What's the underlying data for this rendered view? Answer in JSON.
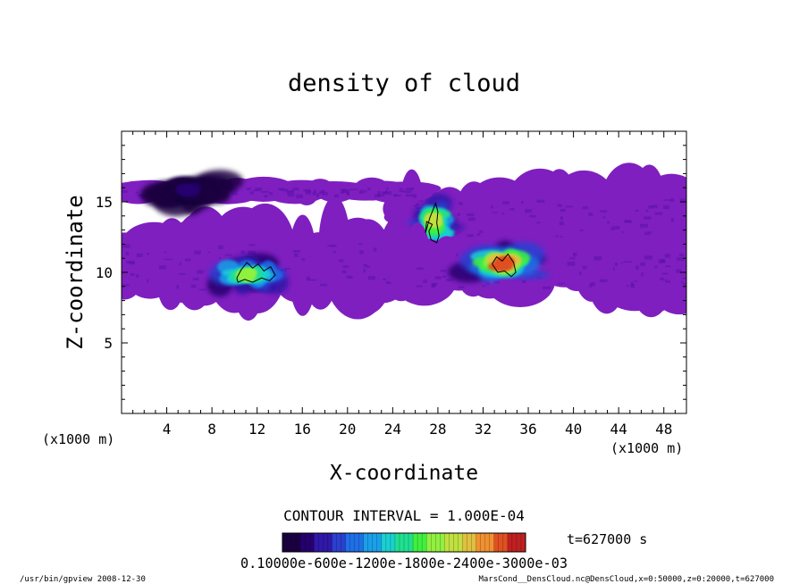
{
  "chart_data": {
    "type": "heatmap",
    "title": "density of cloud",
    "xlabel": "X-coordinate",
    "ylabel": "Z-coordinate",
    "x_unit_left": "(x1000 m)",
    "x_unit_right": "(x1000 m)",
    "xlim": [
      0,
      50
    ],
    "ylim": [
      0,
      20
    ],
    "x_ticks": [
      4,
      8,
      12,
      16,
      20,
      24,
      28,
      32,
      36,
      40,
      44,
      48
    ],
    "y_ticks": [
      5,
      10,
      15
    ],
    "x_minor_step": 1,
    "y_minor_step": 1,
    "contour_interval_label": "CONTOUR INTERVAL = 1.000E-04",
    "time_label": "t=627000 s",
    "colorbar_labels": "0.10000e-600e-1200e-1800e-2400e-3000e-03",
    "colorbar_range": [
      0,
      0.0003
    ],
    "colorbar_colors": [
      "#1a0040",
      "#26006e",
      "#3018a8",
      "#2b3fd0",
      "#1f6fe6",
      "#1aa0e8",
      "#1ad0d0",
      "#20e090",
      "#40f040",
      "#90f040",
      "#c0e040",
      "#e0c040",
      "#f09030",
      "#e05020",
      "#c02020"
    ],
    "cloud_base_color": "#7f1fc0",
    "cloud_edge_color": "#5a10a8",
    "regions": [
      {
        "name": "left cloud band",
        "x_range": [
          0,
          27
        ],
        "z_range": [
          7.7,
          13.2
        ],
        "peak_x": 11,
        "peak_z": 9.9,
        "peak_value": 0.00018
      },
      {
        "name": "upper middle cloud",
        "x_range": [
          25.5,
          50
        ],
        "z_range": [
          11.5,
          16.2
        ],
        "peak_x": 27.7,
        "peak_z": 13.6,
        "peak_value": 0.0002
      },
      {
        "name": "lower right cloud",
        "x_range": [
          26,
          50
        ],
        "z_range": [
          8.2,
          12.2
        ],
        "peak_x": 33.6,
        "peak_z": 10.6,
        "peak_value": 0.00026
      },
      {
        "name": "upper left strip",
        "x_range": [
          0,
          26
        ],
        "z_range": [
          15.3,
          16.2
        ],
        "peak_x": 6,
        "peak_z": 15.8,
        "peak_value": 2e-05
      }
    ],
    "contours": [
      {
        "level": 0.0001,
        "x": [
          10.2,
          10.6,
          11.1,
          11.6,
          12.1,
          12.6,
          13.2,
          13.6,
          13.1,
          12.4,
          11.6,
          10.9,
          10.3,
          10.2
        ],
        "z": [
          9.6,
          10.2,
          10.7,
          10.3,
          10.6,
          10.1,
          10.4,
          9.8,
          9.4,
          9.6,
          9.3,
          9.5,
          9.3,
          9.6
        ]
      },
      {
        "level": 0.0001,
        "x": [
          26.9,
          27.3,
          27.8,
          28.0,
          27.9,
          28.1,
          27.9,
          27.4,
          27.2,
          27.5,
          27.0,
          26.9
        ],
        "z": [
          12.8,
          13.9,
          14.9,
          14.3,
          13.5,
          12.6,
          12.1,
          12.3,
          12.9,
          13.4,
          13.6,
          12.8
        ]
      },
      {
        "level": 0.0001,
        "x": [
          32.8,
          33.2,
          33.7,
          34.2,
          34.7,
          34.9,
          34.5,
          33.9,
          33.3,
          32.8
        ],
        "z": [
          10.6,
          11.1,
          10.8,
          11.3,
          10.7,
          10.0,
          9.7,
          10.1,
          10.0,
          10.6
        ]
      }
    ]
  },
  "footer": {
    "left": "/usr/bin/gpview   2008-12-30",
    "right": "MarsCond__DensCloud.nc@DensCloud,x=0:50000,z=0:20000,t=627000"
  }
}
